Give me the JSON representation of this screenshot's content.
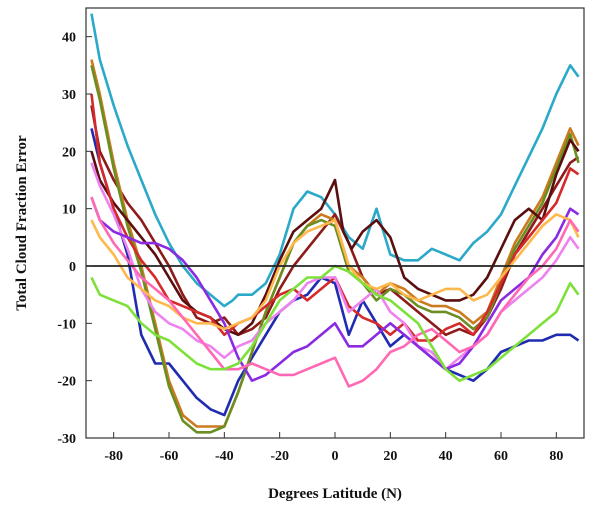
{
  "chart_data": {
    "type": "line",
    "title": "",
    "xlabel": "Degrees Latitude (N)",
    "ylabel": "Total Cloud Fraction Error",
    "xlim": [
      -90,
      90
    ],
    "ylim": [
      -30,
      45
    ],
    "xticks": [
      -80,
      -60,
      -40,
      -20,
      0,
      20,
      40,
      60,
      80
    ],
    "yticks": [
      -30,
      -20,
      -10,
      0,
      10,
      20,
      30,
      40
    ],
    "reference_line_y": 0,
    "grid": false,
    "legend": "none",
    "series": [
      {
        "color": "#2ba9c9",
        "x": [
          -88,
          -85,
          -80,
          -75,
          -70,
          -65,
          -60,
          -55,
          -50,
          -45,
          -40,
          -37,
          -35,
          -30,
          -25,
          -20,
          -15,
          -10,
          -5,
          0,
          5,
          10,
          15,
          20,
          25,
          30,
          35,
          40,
          45,
          50,
          55,
          60,
          65,
          70,
          75,
          80,
          85,
          88
        ],
        "y": [
          44,
          36,
          28,
          21,
          15,
          9,
          4,
          0,
          -3,
          -5,
          -7,
          -6,
          -5,
          -5,
          -3,
          2,
          10,
          13,
          12,
          9,
          5,
          3,
          10,
          2,
          1,
          1,
          3,
          2,
          1,
          4,
          6,
          9,
          14,
          19,
          24,
          30,
          35,
          33
        ]
      },
      {
        "color": "#1f2bb0",
        "x": [
          -88,
          -85,
          -80,
          -75,
          -70,
          -65,
          -60,
          -55,
          -50,
          -45,
          -40,
          -35,
          -30,
          -25,
          -20,
          -15,
          -10,
          -5,
          0,
          5,
          10,
          15,
          20,
          25,
          30,
          35,
          40,
          45,
          50,
          55,
          60,
          65,
          70,
          75,
          80,
          85,
          88
        ],
        "y": [
          24,
          18,
          10,
          2,
          -12,
          -17,
          -17,
          -20,
          -23,
          -25,
          -26,
          -20,
          -16,
          -12,
          -8,
          -6,
          -5,
          -2,
          -3,
          -12,
          -6,
          -10,
          -14,
          -12,
          -14,
          -16,
          -18,
          -19,
          -20,
          -18,
          -15,
          -14,
          -13,
          -13,
          -12,
          -12,
          -13
        ]
      },
      {
        "color": "#8e1a1a",
        "x": [
          -88,
          -85,
          -80,
          -75,
          -70,
          -65,
          -60,
          -55,
          -50,
          -45,
          -40,
          -35,
          -30,
          -25,
          -20,
          -15,
          -10,
          -5,
          0,
          5,
          10,
          15,
          20,
          25,
          30,
          35,
          40,
          45,
          50,
          55,
          60,
          65,
          70,
          75,
          80,
          85,
          88
        ],
        "y": [
          28,
          20,
          15,
          11,
          8,
          4,
          0,
          -5,
          -9,
          -10,
          -9,
          -12,
          -11,
          -9,
          -4,
          0,
          3,
          6,
          9,
          4,
          -2,
          -5,
          -4,
          -6,
          -8,
          -10,
          -12,
          -11,
          -12,
          -9,
          -4,
          2,
          6,
          10,
          14,
          18,
          19
        ]
      },
      {
        "color": "#cc7a1e",
        "x": [
          -88,
          -85,
          -80,
          -75,
          -70,
          -65,
          -60,
          -55,
          -50,
          -45,
          -40,
          -35,
          -30,
          -25,
          -20,
          -15,
          -10,
          -5,
          0,
          5,
          10,
          15,
          20,
          25,
          30,
          35,
          40,
          45,
          50,
          55,
          60,
          65,
          70,
          75,
          80,
          85,
          88
        ],
        "y": [
          36,
          30,
          18,
          8,
          0,
          -10,
          -20,
          -26,
          -28,
          -28,
          -28,
          -22,
          -15,
          -8,
          -2,
          4,
          7,
          9,
          8,
          0,
          -2,
          -5,
          -3,
          -4,
          -6,
          -7,
          -7,
          -8,
          -10,
          -8,
          -2,
          4,
          8,
          12,
          18,
          24,
          21
        ]
      },
      {
        "color": "#6b8e23",
        "x": [
          -88,
          -85,
          -80,
          -75,
          -70,
          -65,
          -60,
          -55,
          -50,
          -45,
          -40,
          -35,
          -30,
          -25,
          -20,
          -15,
          -10,
          -5,
          0,
          5,
          10,
          15,
          20,
          25,
          30,
          35,
          40,
          45,
          50,
          55,
          60,
          65,
          70,
          75,
          80,
          85,
          88
        ],
        "y": [
          35,
          29,
          17,
          7,
          -1,
          -11,
          -21,
          -27,
          -29,
          -29,
          -28,
          -22,
          -15,
          -8,
          -2,
          4,
          7,
          8,
          7,
          -1,
          -3,
          -6,
          -4,
          -5,
          -7,
          -8,
          -8,
          -9,
          -11,
          -9,
          -3,
          3,
          7,
          11,
          17,
          23,
          18
        ]
      },
      {
        "color": "#5a0e0e",
        "x": [
          -88,
          -85,
          -80,
          -75,
          -70,
          -65,
          -60,
          -55,
          -50,
          -45,
          -40,
          -35,
          -30,
          -25,
          -20,
          -15,
          -10,
          -5,
          0,
          3,
          6,
          10,
          15,
          20,
          25,
          30,
          35,
          40,
          45,
          50,
          55,
          60,
          65,
          70,
          75,
          80,
          85,
          88
        ],
        "y": [
          20,
          15,
          11,
          8,
          5,
          2,
          -2,
          -6,
          -8,
          -9,
          -11,
          -12,
          -10,
          -5,
          1,
          6,
          8,
          10,
          15,
          6,
          3,
          6,
          8,
          5,
          -2,
          -4,
          -5,
          -6,
          -6,
          -5,
          -2,
          3,
          8,
          10,
          8,
          16,
          22,
          20
        ]
      },
      {
        "color": "#d42a2a",
        "x": [
          -88,
          -85,
          -80,
          -75,
          -70,
          -65,
          -60,
          -55,
          -50,
          -45,
          -40,
          -35,
          -30,
          -25,
          -20,
          -15,
          -10,
          -5,
          0,
          5,
          10,
          15,
          20,
          25,
          30,
          35,
          40,
          45,
          50,
          55,
          60,
          65,
          70,
          75,
          80,
          85,
          88
        ],
        "y": [
          30,
          18,
          10,
          5,
          1,
          -2,
          -6,
          -7,
          -8,
          -9,
          -12,
          -10,
          -9,
          -7,
          -5,
          -4,
          -6,
          -4,
          -2,
          -7,
          -9,
          -10,
          -12,
          -10,
          -13,
          -13,
          -11,
          -10,
          -12,
          -8,
          -3,
          2,
          5,
          8,
          11,
          17,
          16
        ]
      },
      {
        "color": "#ee82ee",
        "x": [
          -88,
          -85,
          -80,
          -75,
          -70,
          -65,
          -60,
          -55,
          -50,
          -45,
          -40,
          -35,
          -30,
          -25,
          -20,
          -15,
          -10,
          -5,
          0,
          5,
          10,
          15,
          20,
          25,
          30,
          35,
          40,
          45,
          50,
          55,
          60,
          65,
          70,
          75,
          80,
          85,
          88
        ],
        "y": [
          18,
          14,
          9,
          3,
          -4,
          -8,
          -10,
          -11,
          -13,
          -14,
          -16,
          -14,
          -13,
          -10,
          -8,
          -6,
          -3,
          -2,
          -2,
          -8,
          -6,
          -4,
          -8,
          -10,
          -14,
          -15,
          -18,
          -16,
          -14,
          -12,
          -8,
          -6,
          -4,
          -2,
          1,
          5,
          3
        ]
      },
      {
        "color": "#8a2be2",
        "x": [
          -88,
          -85,
          -80,
          -75,
          -70,
          -65,
          -60,
          -55,
          -50,
          -45,
          -40,
          -35,
          -30,
          -25,
          -20,
          -15,
          -10,
          -5,
          0,
          5,
          10,
          15,
          20,
          25,
          30,
          35,
          40,
          45,
          50,
          55,
          60,
          65,
          70,
          75,
          80,
          85,
          88
        ],
        "y": [
          12,
          8,
          6,
          5,
          4,
          4,
          3,
          1,
          -2,
          -6,
          -10,
          -16,
          -20,
          -19,
          -17,
          -15,
          -14,
          -12,
          -10,
          -14,
          -14,
          -12,
          -10,
          -12,
          -14,
          -16,
          -18,
          -17,
          -14,
          -10,
          -6,
          -4,
          -2,
          2,
          5,
          10,
          9
        ]
      },
      {
        "color": "#ffb84d",
        "x": [
          -88,
          -85,
          -80,
          -75,
          -70,
          -65,
          -60,
          -55,
          -50,
          -45,
          -40,
          -35,
          -30,
          -25,
          -20,
          -15,
          -10,
          -5,
          0,
          5,
          10,
          15,
          20,
          25,
          30,
          35,
          40,
          45,
          50,
          55,
          60,
          65,
          70,
          75,
          80,
          85,
          88
        ],
        "y": [
          8,
          5,
          2,
          -2,
          -4,
          -6,
          -7,
          -9,
          -10,
          -10,
          -11,
          -10,
          -9,
          -6,
          0,
          4,
          6,
          7,
          8,
          0,
          -3,
          -4,
          -3,
          -5,
          -6,
          -5,
          -4,
          -4,
          -6,
          -5,
          -2,
          1,
          4,
          7,
          9,
          8,
          5
        ]
      },
      {
        "color": "#ff69b4",
        "x": [
          -88,
          -85,
          -80,
          -75,
          -70,
          -65,
          -60,
          -55,
          -50,
          -45,
          -40,
          -35,
          -30,
          -25,
          -20,
          -15,
          -10,
          -5,
          0,
          5,
          10,
          15,
          20,
          25,
          30,
          35,
          40,
          45,
          50,
          55,
          60,
          65,
          70,
          75,
          80,
          85,
          88
        ],
        "y": [
          12,
          8,
          4,
          1,
          -2,
          -4,
          -6,
          -9,
          -12,
          -15,
          -18,
          -18,
          -17,
          -18,
          -19,
          -19,
          -18,
          -17,
          -16,
          -21,
          -20,
          -18,
          -15,
          -14,
          -12,
          -11,
          -13,
          -15,
          -14,
          -12,
          -8,
          -5,
          -2,
          0,
          3,
          8,
          6
        ]
      },
      {
        "color": "#7ee03a",
        "x": [
          -88,
          -85,
          -80,
          -75,
          -70,
          -65,
          -60,
          -55,
          -50,
          -45,
          -40,
          -35,
          -30,
          -25,
          -20,
          -15,
          -10,
          -5,
          0,
          5,
          10,
          15,
          20,
          25,
          30,
          35,
          40,
          45,
          50,
          55,
          60,
          65,
          70,
          75,
          80,
          85,
          88
        ],
        "y": [
          -2,
          -5,
          -6,
          -7,
          -10,
          -12,
          -13,
          -15,
          -17,
          -18,
          -18,
          -17,
          -14,
          -10,
          -6,
          -4,
          -2,
          -2,
          0,
          -1,
          -3,
          -5,
          -6,
          -8,
          -10,
          -14,
          -18,
          -20,
          -19,
          -18,
          -16,
          -14,
          -12,
          -10,
          -8,
          -3,
          -5
        ]
      }
    ]
  }
}
